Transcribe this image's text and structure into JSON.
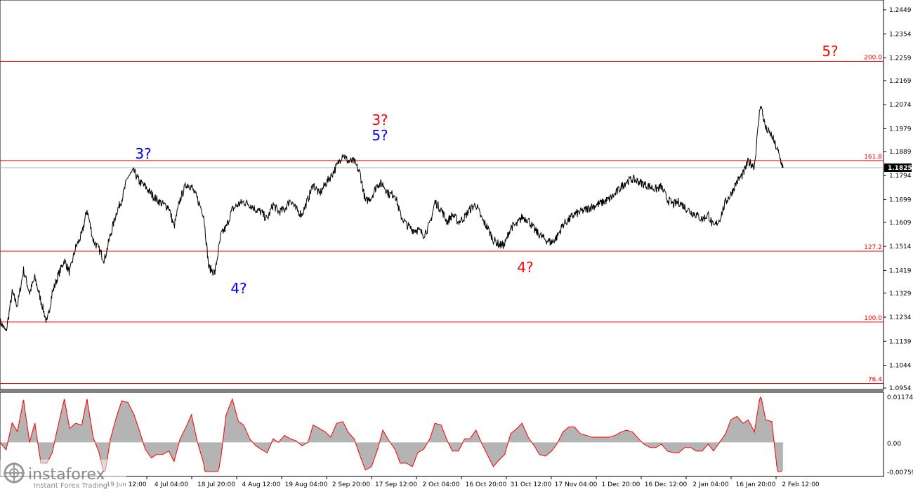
{
  "chart_data": {
    "type": "line",
    "instrument_price_current": "1.1825",
    "price_axis": {
      "min": 1.0954,
      "max": 1.2449,
      "ticks": [
        "1.2449",
        "1.2354",
        "1.2259",
        "1.2169",
        "1.2074",
        "1.1979",
        "1.1889",
        "1.1794",
        "1.1699",
        "1.1609",
        "1.1514",
        "1.1419",
        "1.1329",
        "1.1234",
        "1.1139",
        "1.1044",
        "1.0954"
      ]
    },
    "time_axis": {
      "labels": [
        "19 Jun 12:00",
        "4 Jul 04:00",
        "18 Jul 20:00",
        "4 Aug 12:00",
        "19 Aug 04:00",
        "2 Sep 20:00",
        "17 Sep 12:00",
        "2 Oct 04:00",
        "16 Oct 20:00",
        "31 Oct 12:00",
        "17 Nov 04:00",
        "1 Dec 20:00",
        "16 Dec 12:00",
        "2 Jan 04:00",
        "16 Jan 20:00",
        "2 Feb 12:00"
      ]
    },
    "fib_levels": [
      {
        "label": "200.0",
        "price": 1.2245
      },
      {
        "label": "161.8",
        "price": 1.1853
      },
      {
        "label": "127.2",
        "price": 1.1495
      },
      {
        "label": "100.0",
        "price": 1.1215
      },
      {
        "label": "76.4",
        "price": 1.0972
      }
    ],
    "wave_labels": [
      {
        "text": "3?",
        "color": "#0000ff"
      },
      {
        "text": "4?",
        "color": "#0000ff"
      },
      {
        "text": "5?",
        "color": "#0000ff"
      },
      {
        "text": "3?",
        "color": "#ff0000"
      },
      {
        "text": "4?",
        "color": "#ff0000"
      },
      {
        "text": "5?",
        "color": "#ff0000"
      }
    ],
    "price_series": [
      [
        0.0,
        1.1218
      ],
      [
        0.7,
        1.1175
      ],
      [
        1.4,
        1.133
      ],
      [
        2.0,
        1.128
      ],
      [
        2.7,
        1.142
      ],
      [
        3.4,
        1.133
      ],
      [
        4.0,
        1.139
      ],
      [
        4.7,
        1.13
      ],
      [
        5.4,
        1.121
      ],
      [
        6.0,
        1.133
      ],
      [
        6.7,
        1.14
      ],
      [
        7.4,
        1.146
      ],
      [
        8.0,
        1.141
      ],
      [
        8.7,
        1.151
      ],
      [
        9.4,
        1.156
      ],
      [
        10.0,
        1.166
      ],
      [
        10.7,
        1.154
      ],
      [
        11.4,
        1.15
      ],
      [
        12.0,
        1.146
      ],
      [
        12.7,
        1.156
      ],
      [
        13.4,
        1.165
      ],
      [
        14.0,
        1.17
      ],
      [
        14.7,
        1.179
      ],
      [
        15.4,
        1.181
      ],
      [
        16.0,
        1.177
      ],
      [
        16.7,
        1.175
      ],
      [
        17.4,
        1.172
      ],
      [
        18.0,
        1.17
      ],
      [
        18.7,
        1.168
      ],
      [
        19.4,
        1.167
      ],
      [
        20.0,
        1.159
      ],
      [
        20.7,
        1.17
      ],
      [
        21.4,
        1.176
      ],
      [
        22.0,
        1.175
      ],
      [
        22.7,
        1.17
      ],
      [
        23.4,
        1.164
      ],
      [
        24.0,
        1.143
      ],
      [
        24.7,
        1.141
      ],
      [
        25.4,
        1.156
      ],
      [
        26.0,
        1.159
      ],
      [
        26.7,
        1.166
      ],
      [
        27.4,
        1.168
      ],
      [
        28.0,
        1.169
      ],
      [
        28.7,
        1.168
      ],
      [
        29.4,
        1.166
      ],
      [
        30.0,
        1.165
      ],
      [
        30.7,
        1.162
      ],
      [
        31.4,
        1.168
      ],
      [
        32.0,
        1.165
      ],
      [
        32.7,
        1.166
      ],
      [
        33.4,
        1.17
      ],
      [
        34.0,
        1.166
      ],
      [
        34.7,
        1.164
      ],
      [
        35.4,
        1.17
      ],
      [
        36.0,
        1.176
      ],
      [
        36.7,
        1.172
      ],
      [
        37.4,
        1.176
      ],
      [
        38.0,
        1.179
      ],
      [
        38.7,
        1.183
      ],
      [
        39.4,
        1.188
      ],
      [
        40.0,
        1.185
      ],
      [
        40.7,
        1.185
      ],
      [
        41.4,
        1.18
      ],
      [
        42.0,
        1.169
      ],
      [
        42.7,
        1.171
      ],
      [
        43.4,
        1.176
      ],
      [
        44.0,
        1.176
      ],
      [
        44.7,
        1.172
      ],
      [
        45.4,
        1.172
      ],
      [
        46.0,
        1.164
      ],
      [
        46.7,
        1.16
      ],
      [
        47.4,
        1.158
      ],
      [
        48.0,
        1.158
      ],
      [
        48.7,
        1.156
      ],
      [
        49.4,
        1.16
      ],
      [
        50.0,
        1.169
      ],
      [
        50.7,
        1.166
      ],
      [
        51.4,
        1.161
      ],
      [
        52.0,
        1.164
      ],
      [
        52.7,
        1.161
      ],
      [
        53.4,
        1.163
      ],
      [
        54.0,
        1.166
      ],
      [
        54.7,
        1.168
      ],
      [
        55.4,
        1.162
      ],
      [
        56.0,
        1.159
      ],
      [
        56.7,
        1.154
      ],
      [
        57.4,
        1.152
      ],
      [
        58.0,
        1.152
      ],
      [
        58.7,
        1.159
      ],
      [
        59.4,
        1.16
      ],
      [
        60.0,
        1.163
      ],
      [
        60.7,
        1.162
      ],
      [
        61.4,
        1.158
      ],
      [
        62.0,
        1.156
      ],
      [
        62.7,
        1.154
      ],
      [
        63.4,
        1.153
      ],
      [
        64.0,
        1.155
      ],
      [
        64.7,
        1.16
      ],
      [
        65.4,
        1.162
      ],
      [
        66.0,
        1.164
      ],
      [
        66.7,
        1.165
      ],
      [
        67.4,
        1.166
      ],
      [
        68.0,
        1.167
      ],
      [
        68.7,
        1.168
      ],
      [
        69.4,
        1.169
      ],
      [
        70.0,
        1.17
      ],
      [
        70.7,
        1.172
      ],
      [
        71.4,
        1.175
      ],
      [
        72.0,
        1.177
      ],
      [
        72.7,
        1.178
      ],
      [
        73.4,
        1.177
      ],
      [
        74.0,
        1.176
      ],
      [
        74.7,
        1.175
      ],
      [
        75.4,
        1.174
      ],
      [
        76.0,
        1.175
      ],
      [
        76.7,
        1.17
      ],
      [
        77.4,
        1.168
      ],
      [
        78.0,
        1.169
      ],
      [
        78.7,
        1.167
      ],
      [
        79.4,
        1.165
      ],
      [
        80.0,
        1.164
      ],
      [
        80.7,
        1.162
      ],
      [
        81.4,
        1.164
      ],
      [
        82.0,
        1.159
      ],
      [
        82.7,
        1.162
      ],
      [
        83.4,
        1.169
      ],
      [
        84.0,
        1.172
      ],
      [
        84.7,
        1.177
      ],
      [
        85.4,
        1.18
      ],
      [
        86.0,
        1.185
      ],
      [
        86.7,
        1.183
      ],
      [
        87.4,
        1.208
      ],
      [
        88.0,
        1.198
      ],
      [
        88.7,
        1.195
      ],
      [
        89.4,
        1.189
      ],
      [
        90.0,
        1.1825
      ]
    ]
  },
  "oscillator": {
    "top_tick": "0.01174",
    "zero_tick": "0.00",
    "bottom_tick": "-0.00759",
    "max": 0.01174,
    "min": -0.00759
  },
  "branding": {
    "logo_name": "instaforex",
    "tagline": "Instant Forex Trading"
  },
  "colors": {
    "fib_line": "#ff0000",
    "price_line": "#000000",
    "oscillator_fill": "#b4b4b4",
    "oscillator_signal": "#ff0000",
    "wave_blue": "#0000ff",
    "wave_red": "#ff0000",
    "current_price_box": "#000000"
  }
}
